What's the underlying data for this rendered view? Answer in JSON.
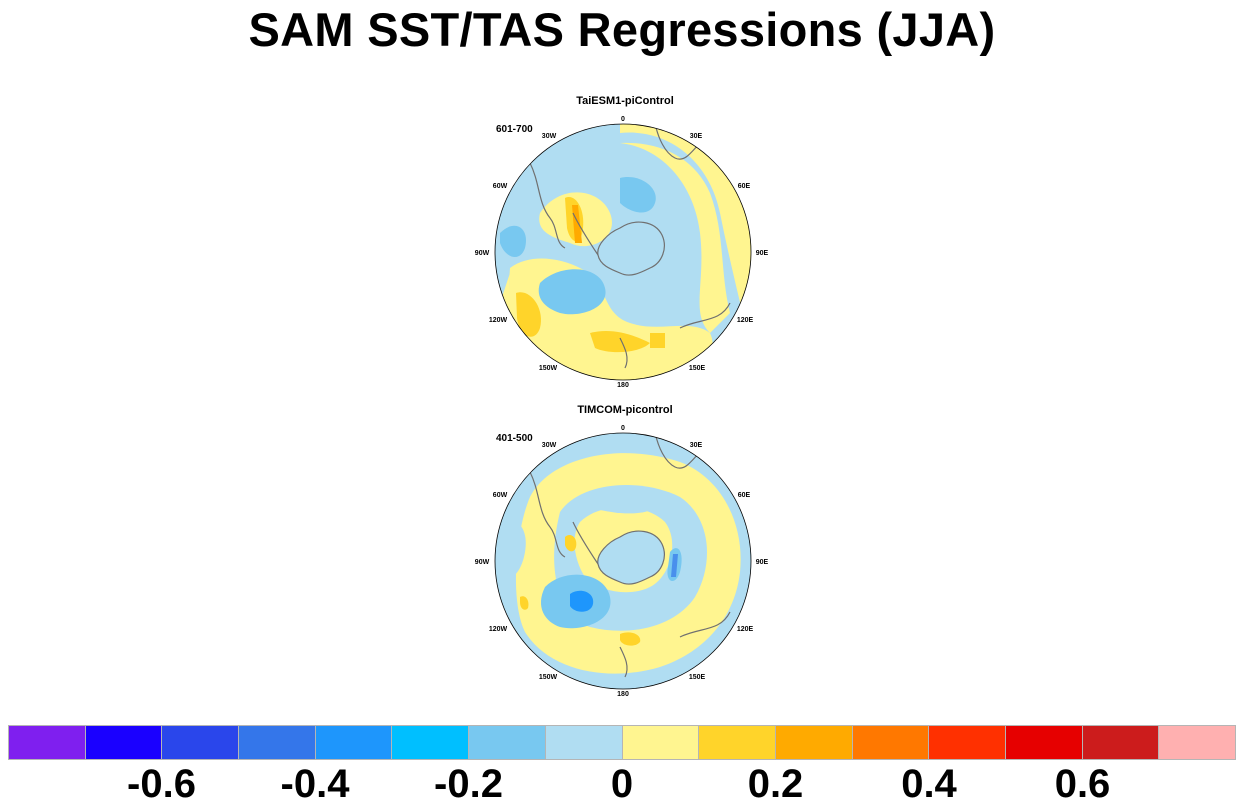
{
  "title": "SAM SST/TAS Regressions (JJA)",
  "panels": [
    {
      "title": "TaiESM1-piControl",
      "period": "601-700"
    },
    {
      "title": "TIMCOM-picontrol",
      "period": "401-500"
    }
  ],
  "longitude_labels": [
    "0",
    "30E",
    "60E",
    "90E",
    "120E",
    "150E",
    "180",
    "150W",
    "120W",
    "90W",
    "60W",
    "30W"
  ],
  "colorbar": {
    "colors": [
      "#7f1fef",
      "#1a00ff",
      "#2a46eb",
      "#3476ea",
      "#1e96fc",
      "#00bfff",
      "#78c8f0",
      "#b0ddf2",
      "#fff590",
      "#ffd42a",
      "#ffaa00",
      "#ff7800",
      "#ff3000",
      "#e60000",
      "#cc1c1c",
      "#ffb0b0"
    ],
    "labels": [
      "-0.6",
      "-0.4",
      "-0.2",
      "0",
      "0.2",
      "0.4",
      "0.6"
    ]
  },
  "map_colors": {
    "ocean_base": "#b0ddf2",
    "warm_weak": "#fff590",
    "warm_mid": "#ffd42a",
    "warm_strong": "#ffaa00",
    "cool_mid": "#78c8f0",
    "cool_strong": "#1e96fc",
    "coastline": "#707070"
  }
}
